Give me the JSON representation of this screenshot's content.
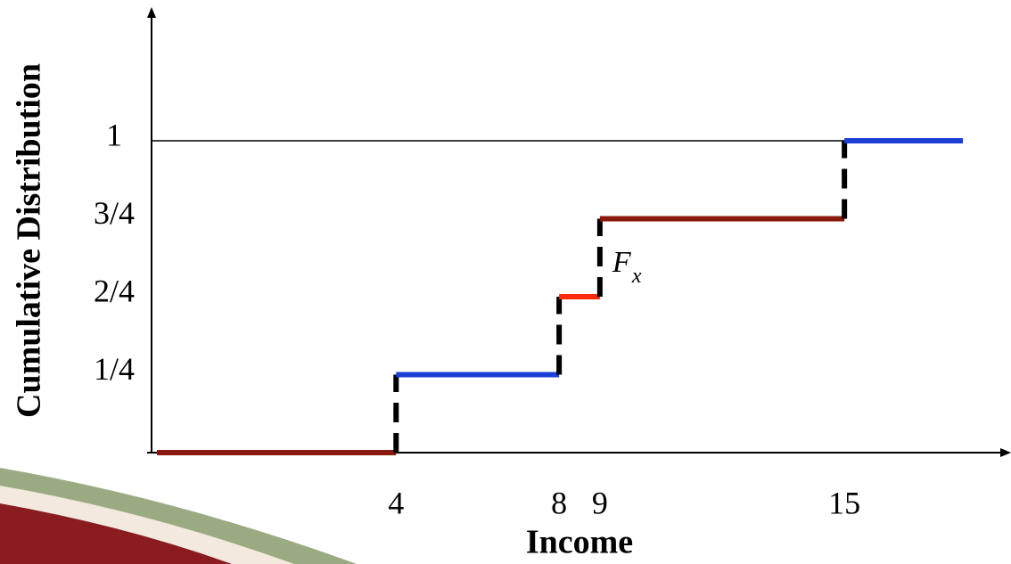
{
  "chart_data": {
    "type": "step",
    "x_label": "Income",
    "y_label": "Cumulative Distribution",
    "x": [
      4,
      8,
      9,
      15
    ],
    "values": [
      0.25,
      0.5,
      0.75,
      1
    ],
    "colors": [
      "#1c3fd6",
      "#ff2a0a",
      "#8b1a0e",
      "#1c3fd6"
    ],
    "base_color": "#8b1a0e",
    "jump_color": "#000000",
    "xlim": [
      -2,
      19
    ],
    "ylim": [
      0,
      1.4
    ],
    "xticks": [
      4,
      8,
      9,
      15
    ],
    "yticks": [
      {
        "value": 0.25,
        "label": "1/4"
      },
      {
        "value": 0.5,
        "label": "2/4"
      },
      {
        "value": 0.75,
        "label": "3/4"
      },
      1
    ],
    "reference_line": 1,
    "annotation": {
      "text": "F",
      "subscript": "x"
    }
  }
}
